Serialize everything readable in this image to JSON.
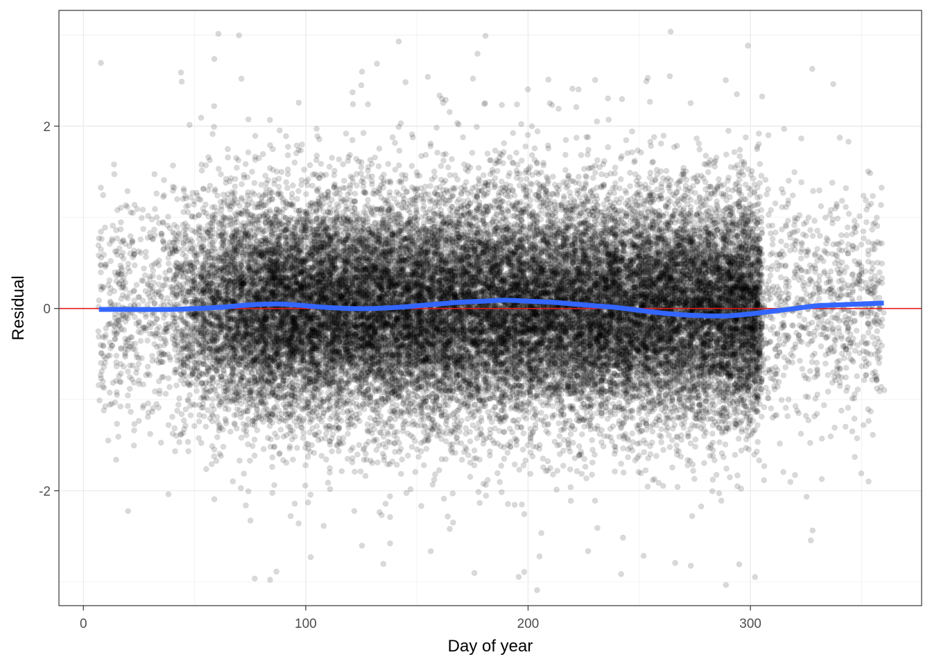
{
  "chart_data": {
    "type": "scatter",
    "title": "",
    "xlabel": "Day of year",
    "ylabel": "Residual",
    "xlim": [
      -11,
      377
    ],
    "ylim": [
      -3.26,
      3.27
    ],
    "x_ticks": [
      0,
      100,
      200,
      300
    ],
    "x_tick_labels": [
      "0",
      "100",
      "200",
      "300"
    ],
    "y_ticks": [
      -2,
      0,
      2
    ],
    "y_tick_labels": [
      "-2",
      "0",
      "2"
    ],
    "grid": true,
    "theme": "bw",
    "reference_line": {
      "y": 0,
      "color": "#e31a1c"
    },
    "points": {
      "count": 30000,
      "color": "#000000",
      "alpha": 0.15,
      "x_range": [
        7,
        360
      ],
      "dense_x_range": [
        40,
        305
      ],
      "y_center": 0,
      "y_spread": 0.6
    },
    "smooth": {
      "color": "#3366ff",
      "x": [
        7,
        20,
        40,
        60,
        75,
        88,
        100,
        110,
        120,
        130,
        140,
        150,
        160,
        170,
        180,
        190,
        200,
        210,
        220,
        230,
        240,
        250,
        260,
        270,
        280,
        290,
        300,
        310,
        320,
        330,
        340,
        350,
        360
      ],
      "y": [
        -0.01,
        -0.01,
        -0.01,
        0.01,
        0.04,
        0.05,
        0.03,
        0.01,
        0.0,
        0.0,
        0.01,
        0.03,
        0.05,
        0.07,
        0.08,
        0.09,
        0.08,
        0.07,
        0.05,
        0.03,
        0.01,
        -0.02,
        -0.05,
        -0.07,
        -0.08,
        -0.08,
        -0.06,
        -0.03,
        0.0,
        0.03,
        0.04,
        0.05,
        0.06
      ]
    }
  }
}
